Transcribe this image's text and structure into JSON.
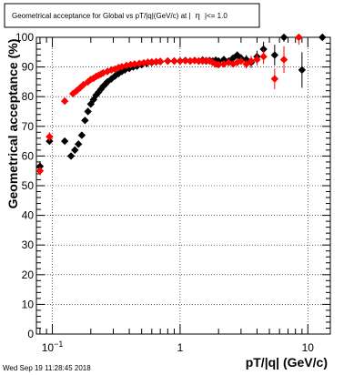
{
  "timestamp": "Wed Sep 19 11:28:45 2018",
  "chart_data": {
    "type": "scatter",
    "title": "Geometrical acceptance for Global vs pT/|q|(GeV/c) at | η |<= 1.0",
    "title_text_before_eta": "Geometrical acceptance for Global vs pT/|q|(GeV/c) at |",
    "title_eta": "η",
    "title_text_after_eta": "|<= 1.0",
    "xlabel": "pT/|q| (GeV/c)",
    "ylabel": "Geometrical acceptance (%)",
    "x_scale": "log",
    "xlim": [
      0.075,
      15
    ],
    "ylim": [
      0,
      100
    ],
    "grid": true,
    "x_tick_labels": [
      {
        "value": 0.1,
        "base": "10",
        "exponent": "−1"
      },
      {
        "value": 1,
        "text": "1"
      },
      {
        "value": 10,
        "text": "10"
      }
    ],
    "y_ticks": [
      0,
      10,
      20,
      30,
      40,
      50,
      60,
      70,
      80,
      90,
      100
    ],
    "series": [
      {
        "color": "#000000",
        "points": [
          [
            0.08,
            56.5,
            1.5
          ],
          [
            0.095,
            65,
            1.2
          ],
          [
            0.125,
            65,
            1.0
          ],
          [
            0.14,
            60,
            0.8
          ],
          [
            0.15,
            62,
            0.8
          ],
          [
            0.16,
            64,
            0.8
          ],
          [
            0.17,
            67,
            0.8
          ],
          [
            0.18,
            72,
            0.8
          ],
          [
            0.19,
            75,
            0.7
          ],
          [
            0.2,
            77.5,
            0.6
          ],
          [
            0.21,
            79,
            0.6
          ],
          [
            0.22,
            80.5,
            0.5
          ],
          [
            0.23,
            81.5,
            0.5
          ],
          [
            0.24,
            82.5,
            0.5
          ],
          [
            0.25,
            83.5,
            0.5
          ],
          [
            0.26,
            84.2,
            0.4
          ],
          [
            0.27,
            85,
            0.4
          ],
          [
            0.29,
            86,
            0.4
          ],
          [
            0.31,
            87,
            0.4
          ],
          [
            0.33,
            87.8,
            0.4
          ],
          [
            0.35,
            88.5,
            0.4
          ],
          [
            0.37,
            89,
            0.4
          ],
          [
            0.4,
            89.5,
            0.3
          ],
          [
            0.43,
            90,
            0.3
          ],
          [
            0.46,
            90.3,
            0.3
          ],
          [
            0.5,
            90.8,
            0.3
          ],
          [
            0.55,
            91.2,
            0.3
          ],
          [
            0.6,
            91.5,
            0.3
          ],
          [
            0.65,
            91.7,
            0.3
          ],
          [
            0.7,
            91.8,
            0.3
          ],
          [
            0.8,
            92,
            0.3
          ],
          [
            0.9,
            92,
            0.3
          ],
          [
            1.0,
            92,
            0.3
          ],
          [
            1.1,
            92.2,
            0.4
          ],
          [
            1.2,
            92,
            0.4
          ],
          [
            1.3,
            92.2,
            0.4
          ],
          [
            1.4,
            92,
            0.4
          ],
          [
            1.5,
            92.3,
            0.5
          ],
          [
            1.6,
            92,
            0.5
          ],
          [
            1.7,
            92.2,
            0.5
          ],
          [
            1.8,
            92,
            0.6
          ],
          [
            1.9,
            92.3,
            0.6
          ],
          [
            2.0,
            92,
            0.7
          ],
          [
            2.2,
            92.5,
            0.8
          ],
          [
            2.4,
            92,
            0.9
          ],
          [
            2.6,
            93,
            1.0
          ],
          [
            2.8,
            94,
            1.2
          ],
          [
            3.0,
            93,
            1.3
          ],
          [
            3.3,
            92.5,
            1.5
          ],
          [
            3.6,
            91.5,
            1.8
          ],
          [
            4.0,
            93.5,
            2.0
          ],
          [
            4.5,
            96,
            2.5
          ],
          [
            5.5,
            94,
            3.5
          ],
          [
            6.5,
            100,
            1.5
          ],
          [
            9.0,
            89,
            6
          ],
          [
            13.0,
            100,
            1.0
          ]
        ]
      },
      {
        "color": "#ff0000",
        "points": [
          [
            0.08,
            55,
            1.5
          ],
          [
            0.095,
            66.5,
            1.5
          ],
          [
            0.125,
            78.5,
            1.2
          ],
          [
            0.145,
            81,
            0.8
          ],
          [
            0.155,
            82,
            0.7
          ],
          [
            0.165,
            83,
            0.6
          ],
          [
            0.175,
            84,
            0.6
          ],
          [
            0.19,
            85,
            0.5
          ],
          [
            0.2,
            85.8,
            0.5
          ],
          [
            0.21,
            86.2,
            0.5
          ],
          [
            0.22,
            86.8,
            0.4
          ],
          [
            0.23,
            87.2,
            0.4
          ],
          [
            0.24,
            87.6,
            0.4
          ],
          [
            0.25,
            88,
            0.4
          ],
          [
            0.27,
            88.5,
            0.4
          ],
          [
            0.29,
            89,
            0.3
          ],
          [
            0.31,
            89.3,
            0.3
          ],
          [
            0.33,
            89.8,
            0.3
          ],
          [
            0.35,
            90.1,
            0.3
          ],
          [
            0.38,
            90.5,
            0.3
          ],
          [
            0.41,
            90.8,
            0.3
          ],
          [
            0.44,
            91,
            0.3
          ],
          [
            0.48,
            91.2,
            0.3
          ],
          [
            0.52,
            91.4,
            0.3
          ],
          [
            0.56,
            91.6,
            0.3
          ],
          [
            0.6,
            91.7,
            0.3
          ],
          [
            0.65,
            91.8,
            0.3
          ],
          [
            0.7,
            91.9,
            0.3
          ],
          [
            0.8,
            92,
            0.3
          ],
          [
            0.9,
            92,
            0.3
          ],
          [
            1.0,
            92,
            0.3
          ],
          [
            1.1,
            92.1,
            0.4
          ],
          [
            1.2,
            92,
            0.4
          ],
          [
            1.3,
            92.2,
            0.4
          ],
          [
            1.4,
            92,
            0.4
          ],
          [
            1.5,
            92,
            0.5
          ],
          [
            1.6,
            92.2,
            0.5
          ],
          [
            1.7,
            92,
            0.5
          ],
          [
            1.8,
            91.5,
            0.6
          ],
          [
            1.9,
            91,
            0.6
          ],
          [
            2.0,
            90.8,
            0.7
          ],
          [
            2.2,
            91,
            0.8
          ],
          [
            2.4,
            91.5,
            0.9
          ],
          [
            2.6,
            91,
            1.0
          ],
          [
            2.8,
            91.5,
            1.1
          ],
          [
            3.0,
            92,
            1.3
          ],
          [
            3.3,
            91,
            1.5
          ],
          [
            3.6,
            92,
            1.8
          ],
          [
            4.0,
            92.5,
            2.0
          ],
          [
            4.5,
            93.5,
            2.5
          ],
          [
            5.5,
            86,
            3.5
          ],
          [
            6.5,
            92.5,
            4.5
          ],
          [
            8.5,
            100,
            2.5
          ]
        ]
      }
    ]
  }
}
